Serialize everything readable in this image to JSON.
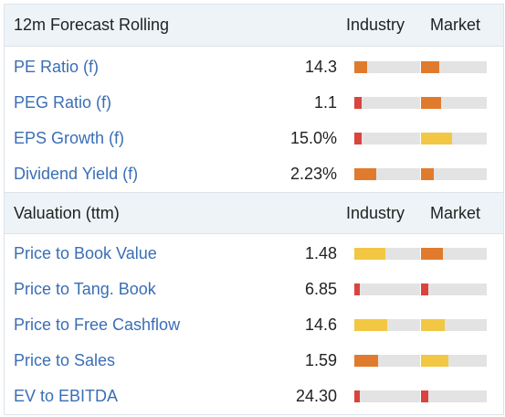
{
  "colors": {
    "red": "#d9443f",
    "orange": "#e07b2e",
    "yellow": "#f2c744",
    "link": "#3a6eb5"
  },
  "sections": [
    {
      "title": "12m Forecast Rolling",
      "col_industry": "Industry",
      "col_market": "Market",
      "rows": [
        {
          "label": "PE Ratio (f)",
          "value": "14.3",
          "industry": 0.2,
          "industry_color": "orange",
          "market": 0.28,
          "market_color": "orange"
        },
        {
          "label": "PEG Ratio (f)",
          "value": "1.1",
          "industry": 0.11,
          "industry_color": "red",
          "market": 0.31,
          "market_color": "orange"
        },
        {
          "label": "EPS Growth (f)",
          "value": "15.0%",
          "industry": 0.11,
          "industry_color": "red",
          "market": 0.47,
          "market_color": "yellow"
        },
        {
          "label": "Dividend Yield (f)",
          "value": "2.23%",
          "industry": 0.33,
          "industry_color": "orange",
          "market": 0.19,
          "market_color": "orange"
        }
      ]
    },
    {
      "title": "Valuation (ttm)",
      "col_industry": "Industry",
      "col_market": "Market",
      "rows": [
        {
          "label": "Price to Book Value",
          "value": "1.48",
          "industry": 0.47,
          "industry_color": "yellow",
          "market": 0.33,
          "market_color": "orange"
        },
        {
          "label": "Price to Tang. Book",
          "value": "6.85",
          "industry": 0.08,
          "industry_color": "red",
          "market": 0.11,
          "market_color": "red"
        },
        {
          "label": "Price to Free Cashflow",
          "value": "14.6",
          "industry": 0.5,
          "industry_color": "yellow",
          "market": 0.36,
          "market_color": "yellow"
        },
        {
          "label": "Price to Sales",
          "value": "1.59",
          "industry": 0.36,
          "industry_color": "orange",
          "market": 0.42,
          "market_color": "yellow"
        },
        {
          "label": "EV to EBITDA",
          "value": "24.30",
          "industry": 0.08,
          "industry_color": "red",
          "market": 0.11,
          "market_color": "red"
        }
      ]
    }
  ]
}
